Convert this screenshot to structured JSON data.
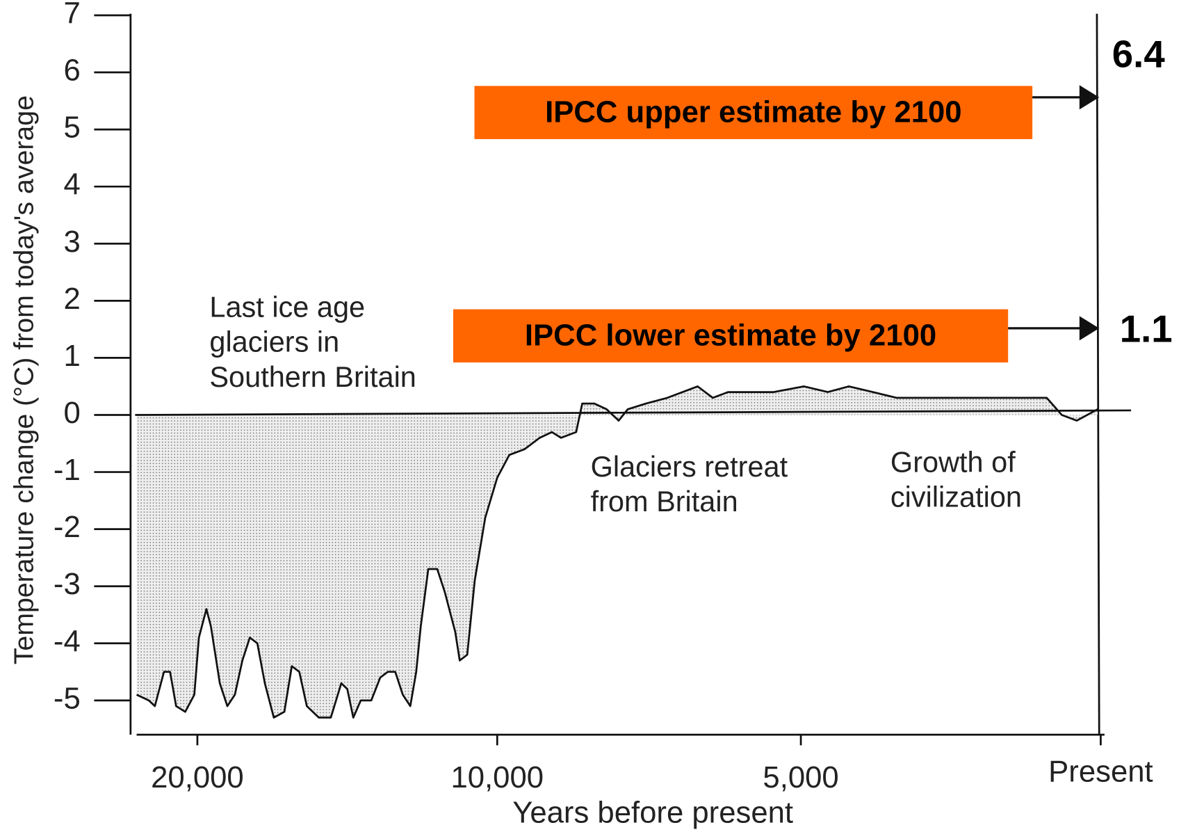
{
  "chart_data": {
    "type": "area",
    "x_label": "Years before present",
    "y_label": "Temperature change (°C) from today's average",
    "xlim": [
      22000,
      0
    ],
    "xticks": [
      {
        "value": 20000,
        "label": "20,000"
      },
      {
        "value": 10000,
        "label": "10,000"
      },
      {
        "value": 5000,
        "label": "5,000"
      },
      {
        "value": 0,
        "label": "Present"
      }
    ],
    "ylim": [
      -5.6,
      7
    ],
    "yticks": [
      -5,
      -4,
      -3,
      -2,
      -1,
      0,
      1,
      2,
      3,
      4,
      5,
      6,
      7
    ],
    "color": "#111111",
    "x": [
      22000,
      21600,
      21400,
      21100,
      20900,
      20700,
      20400,
      20100,
      19950,
      19700,
      19550,
      19250,
      19000,
      18750,
      18500,
      18250,
      18000,
      17750,
      17450,
      17100,
      16850,
      16600,
      16350,
      15950,
      15550,
      15200,
      15000,
      14800,
      14550,
      14200,
      13900,
      13650,
      13400,
      13150,
      12900,
      12700,
      12550,
      12300,
      12000,
      11750,
      11400,
      11250,
      11000,
      10750,
      10400,
      10000,
      9800,
      9550,
      9300,
      9100,
      8950,
      8700,
      8600,
      8400,
      8200,
      8000,
      7850,
      7550,
      7200,
      6700,
      6450,
      6200,
      5800,
      5450,
      4950,
      4550,
      4200,
      3800,
      3400,
      2900,
      2400,
      1900,
      1400,
      900,
      650,
      400,
      50
    ],
    "values": [
      -4.9,
      -5.0,
      -5.1,
      -4.5,
      -4.5,
      -5.1,
      -5.2,
      -4.9,
      -3.9,
      -3.4,
      -3.7,
      -4.7,
      -5.1,
      -4.9,
      -4.3,
      -3.9,
      -4.0,
      -4.7,
      -5.3,
      -5.2,
      -4.4,
      -4.5,
      -5.1,
      -5.3,
      -5.3,
      -4.7,
      -4.8,
      -5.3,
      -5.0,
      -5.0,
      -4.6,
      -4.5,
      -4.5,
      -4.9,
      -5.1,
      -4.5,
      -3.7,
      -2.7,
      -2.7,
      -3.1,
      -3.8,
      -4.3,
      -4.2,
      -2.9,
      -1.8,
      -1.1,
      -0.7,
      -0.6,
      -0.4,
      -0.3,
      -0.4,
      -0.3,
      0.2,
      0.2,
      0.1,
      -0.1,
      0.1,
      0.2,
      0.3,
      0.5,
      0.3,
      0.4,
      0.4,
      0.4,
      0.5,
      0.4,
      0.5,
      0.4,
      0.3,
      0.3,
      0.3,
      0.3,
      0.3,
      0.3,
      0.0,
      -0.1,
      0.1
    ],
    "annotations": [
      {
        "lines": [
          "Last ice age",
          "glaciers in",
          "Southern Britain"
        ]
      },
      {
        "lines": [
          "Glaciers retreat",
          "from Britain"
        ]
      },
      {
        "lines": [
          "Growth of",
          "civilization"
        ]
      }
    ],
    "estimates": [
      {
        "label": "IPCC upper estimate by 2100",
        "value": 6.4,
        "color": "#ff6600"
      },
      {
        "label": "IPCC lower estimate by 2100",
        "value": 1.1,
        "color": "#ff6600"
      }
    ]
  }
}
